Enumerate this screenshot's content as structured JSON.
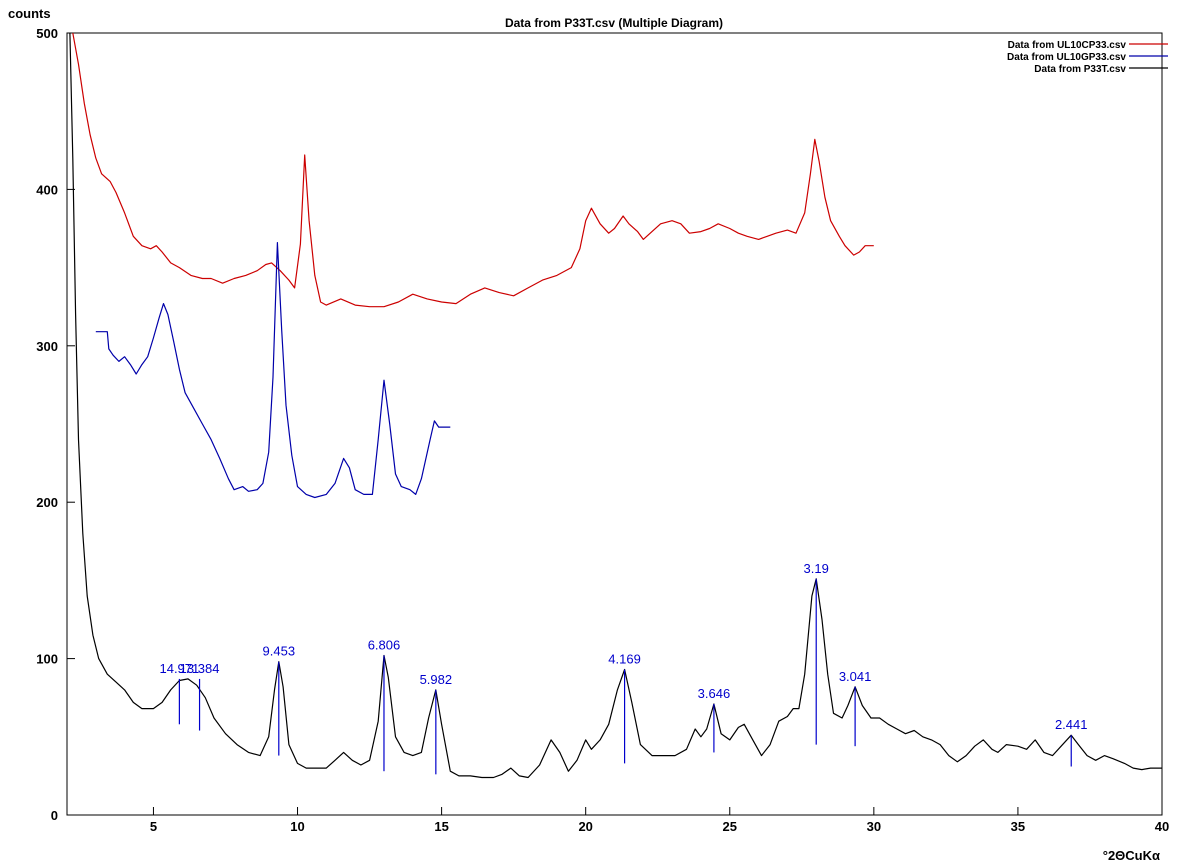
{
  "chart_data": {
    "type": "line",
    "title": "Data from P33T.csv (Multiple Diagram)",
    "ylabel": "counts",
    "xlabel": "°2ΘCuKα",
    "xlim": [
      2,
      40
    ],
    "ylim": [
      0,
      500
    ],
    "x_ticks": [
      5,
      10,
      15,
      20,
      25,
      30,
      35,
      40
    ],
    "y_ticks": [
      0,
      100,
      200,
      300,
      400,
      500
    ],
    "legend_position": "top-right",
    "series": [
      {
        "name": "Data from UL10CP33.csv",
        "color": "#cc0000",
        "points": [
          [
            2.2,
            500
          ],
          [
            2.4,
            480
          ],
          [
            2.6,
            455
          ],
          [
            2.8,
            435
          ],
          [
            3.0,
            420
          ],
          [
            3.2,
            410
          ],
          [
            3.5,
            405
          ],
          [
            3.7,
            398
          ],
          [
            4.0,
            385
          ],
          [
            4.3,
            370
          ],
          [
            4.6,
            364
          ],
          [
            4.9,
            362
          ],
          [
            5.1,
            364
          ],
          [
            5.3,
            360
          ],
          [
            5.6,
            353
          ],
          [
            5.9,
            350
          ],
          [
            6.3,
            345
          ],
          [
            6.7,
            343
          ],
          [
            7.0,
            343
          ],
          [
            7.4,
            340
          ],
          [
            7.8,
            343
          ],
          [
            8.2,
            345
          ],
          [
            8.6,
            348
          ],
          [
            8.9,
            352
          ],
          [
            9.1,
            353
          ],
          [
            9.4,
            348
          ],
          [
            9.7,
            342
          ],
          [
            9.9,
            337
          ],
          [
            10.1,
            365
          ],
          [
            10.25,
            422
          ],
          [
            10.4,
            380
          ],
          [
            10.6,
            345
          ],
          [
            10.8,
            328
          ],
          [
            11.0,
            326
          ],
          [
            11.5,
            330
          ],
          [
            12.0,
            326
          ],
          [
            12.5,
            325
          ],
          [
            13.0,
            325
          ],
          [
            13.5,
            328
          ],
          [
            14.0,
            333
          ],
          [
            14.5,
            330
          ],
          [
            15.0,
            328
          ],
          [
            15.5,
            327
          ],
          [
            16.0,
            333
          ],
          [
            16.5,
            337
          ],
          [
            17.0,
            334
          ],
          [
            17.5,
            332
          ],
          [
            18.0,
            337
          ],
          [
            18.5,
            342
          ],
          [
            19.0,
            345
          ],
          [
            19.5,
            350
          ],
          [
            19.8,
            362
          ],
          [
            20.0,
            380
          ],
          [
            20.2,
            388
          ],
          [
            20.5,
            378
          ],
          [
            20.8,
            372
          ],
          [
            21.0,
            375
          ],
          [
            21.3,
            383
          ],
          [
            21.5,
            378
          ],
          [
            21.8,
            373
          ],
          [
            22.0,
            368
          ],
          [
            22.3,
            373
          ],
          [
            22.6,
            378
          ],
          [
            23.0,
            380
          ],
          [
            23.3,
            378
          ],
          [
            23.6,
            372
          ],
          [
            24.0,
            373
          ],
          [
            24.3,
            375
          ],
          [
            24.6,
            378
          ],
          [
            25.0,
            375
          ],
          [
            25.3,
            372
          ],
          [
            25.6,
            370
          ],
          [
            26.0,
            368
          ],
          [
            26.3,
            370
          ],
          [
            26.6,
            372
          ],
          [
            27.0,
            374
          ],
          [
            27.3,
            372
          ],
          [
            27.6,
            385
          ],
          [
            27.8,
            410
          ],
          [
            27.95,
            432
          ],
          [
            28.1,
            418
          ],
          [
            28.3,
            395
          ],
          [
            28.5,
            380
          ],
          [
            28.8,
            370
          ],
          [
            29.0,
            364
          ],
          [
            29.3,
            358
          ],
          [
            29.5,
            360
          ],
          [
            29.7,
            364
          ],
          [
            30.0,
            364
          ]
        ]
      },
      {
        "name": "Data from UL10GP33.csv",
        "color": "#0000aa",
        "points": [
          [
            3.0,
            309
          ],
          [
            3.4,
            309
          ],
          [
            3.45,
            298
          ],
          [
            3.6,
            294
          ],
          [
            3.8,
            290
          ],
          [
            4.0,
            293
          ],
          [
            4.2,
            288
          ],
          [
            4.4,
            282
          ],
          [
            4.6,
            288
          ],
          [
            4.8,
            293
          ],
          [
            5.0,
            305
          ],
          [
            5.2,
            318
          ],
          [
            5.35,
            327
          ],
          [
            5.5,
            320
          ],
          [
            5.7,
            303
          ],
          [
            5.9,
            285
          ],
          [
            6.1,
            270
          ],
          [
            6.4,
            260
          ],
          [
            6.7,
            250
          ],
          [
            7.0,
            240
          ],
          [
            7.3,
            228
          ],
          [
            7.6,
            215
          ],
          [
            7.8,
            208
          ],
          [
            8.1,
            210
          ],
          [
            8.3,
            207
          ],
          [
            8.6,
            208
          ],
          [
            8.8,
            212
          ],
          [
            9.0,
            232
          ],
          [
            9.15,
            280
          ],
          [
            9.3,
            366
          ],
          [
            9.45,
            310
          ],
          [
            9.6,
            262
          ],
          [
            9.8,
            230
          ],
          [
            10.0,
            210
          ],
          [
            10.3,
            205
          ],
          [
            10.6,
            203
          ],
          [
            11.0,
            205
          ],
          [
            11.3,
            212
          ],
          [
            11.6,
            228
          ],
          [
            11.8,
            222
          ],
          [
            12.0,
            208
          ],
          [
            12.3,
            205
          ],
          [
            12.6,
            205
          ],
          [
            12.8,
            240
          ],
          [
            13.0,
            278
          ],
          [
            13.2,
            250
          ],
          [
            13.4,
            218
          ],
          [
            13.6,
            210
          ],
          [
            13.9,
            208
          ],
          [
            14.1,
            205
          ],
          [
            14.3,
            215
          ],
          [
            14.6,
            240
          ],
          [
            14.75,
            252
          ],
          [
            14.9,
            248
          ],
          [
            15.3,
            248
          ]
        ]
      },
      {
        "name": "Data from P33T.csv",
        "color": "#000000",
        "points": [
          [
            2.1,
            500
          ],
          [
            2.2,
            420
          ],
          [
            2.3,
            320
          ],
          [
            2.4,
            240
          ],
          [
            2.55,
            180
          ],
          [
            2.7,
            140
          ],
          [
            2.9,
            115
          ],
          [
            3.1,
            100
          ],
          [
            3.4,
            90
          ],
          [
            3.7,
            85
          ],
          [
            4.0,
            80
          ],
          [
            4.3,
            72
          ],
          [
            4.6,
            68
          ],
          [
            5.0,
            68
          ],
          [
            5.3,
            72
          ],
          [
            5.6,
            80
          ],
          [
            5.9,
            86
          ],
          [
            6.2,
            87
          ],
          [
            6.5,
            83
          ],
          [
            6.8,
            75
          ],
          [
            7.1,
            62
          ],
          [
            7.5,
            52
          ],
          [
            7.9,
            45
          ],
          [
            8.3,
            40
          ],
          [
            8.7,
            38
          ],
          [
            9.0,
            50
          ],
          [
            9.2,
            80
          ],
          [
            9.35,
            98
          ],
          [
            9.5,
            82
          ],
          [
            9.7,
            45
          ],
          [
            10.0,
            33
          ],
          [
            10.3,
            30
          ],
          [
            10.7,
            30
          ],
          [
            11.0,
            30
          ],
          [
            11.3,
            35
          ],
          [
            11.6,
            40
          ],
          [
            11.9,
            35
          ],
          [
            12.2,
            32
          ],
          [
            12.5,
            35
          ],
          [
            12.8,
            60
          ],
          [
            13.0,
            102
          ],
          [
            13.15,
            88
          ],
          [
            13.4,
            50
          ],
          [
            13.7,
            40
          ],
          [
            14.0,
            38
          ],
          [
            14.3,
            40
          ],
          [
            14.55,
            62
          ],
          [
            14.8,
            80
          ],
          [
            15.0,
            58
          ],
          [
            15.3,
            28
          ],
          [
            15.6,
            25
          ],
          [
            16.0,
            25
          ],
          [
            16.4,
            24
          ],
          [
            16.8,
            24
          ],
          [
            17.1,
            26
          ],
          [
            17.4,
            30
          ],
          [
            17.7,
            25
          ],
          [
            18.0,
            24
          ],
          [
            18.4,
            32
          ],
          [
            18.8,
            48
          ],
          [
            19.1,
            40
          ],
          [
            19.4,
            28
          ],
          [
            19.7,
            35
          ],
          [
            20.0,
            48
          ],
          [
            20.2,
            42
          ],
          [
            20.5,
            48
          ],
          [
            20.8,
            58
          ],
          [
            21.1,
            80
          ],
          [
            21.35,
            93
          ],
          [
            21.6,
            72
          ],
          [
            21.9,
            45
          ],
          [
            22.3,
            38
          ],
          [
            22.7,
            38
          ],
          [
            23.1,
            38
          ],
          [
            23.5,
            42
          ],
          [
            23.8,
            55
          ],
          [
            24.0,
            50
          ],
          [
            24.2,
            55
          ],
          [
            24.45,
            71
          ],
          [
            24.7,
            52
          ],
          [
            25.0,
            48
          ],
          [
            25.3,
            56
          ],
          [
            25.5,
            58
          ],
          [
            25.8,
            48
          ],
          [
            26.1,
            38
          ],
          [
            26.4,
            45
          ],
          [
            26.7,
            60
          ],
          [
            27.0,
            63
          ],
          [
            27.2,
            68
          ],
          [
            27.4,
            68
          ],
          [
            27.6,
            90
          ],
          [
            27.85,
            140
          ],
          [
            28.0,
            151
          ],
          [
            28.2,
            125
          ],
          [
            28.4,
            90
          ],
          [
            28.6,
            65
          ],
          [
            28.9,
            62
          ],
          [
            29.1,
            70
          ],
          [
            29.35,
            82
          ],
          [
            29.6,
            70
          ],
          [
            29.9,
            62
          ],
          [
            30.2,
            62
          ],
          [
            30.5,
            58
          ],
          [
            30.8,
            55
          ],
          [
            31.1,
            52
          ],
          [
            31.4,
            54
          ],
          [
            31.7,
            50
          ],
          [
            32.0,
            48
          ],
          [
            32.3,
            45
          ],
          [
            32.6,
            38
          ],
          [
            32.9,
            34
          ],
          [
            33.2,
            38
          ],
          [
            33.5,
            44
          ],
          [
            33.8,
            48
          ],
          [
            34.1,
            42
          ],
          [
            34.3,
            40
          ],
          [
            34.6,
            45
          ],
          [
            35.0,
            44
          ],
          [
            35.3,
            42
          ],
          [
            35.6,
            48
          ],
          [
            35.9,
            40
          ],
          [
            36.2,
            38
          ],
          [
            36.5,
            44
          ],
          [
            36.85,
            51
          ],
          [
            37.1,
            45
          ],
          [
            37.4,
            38
          ],
          [
            37.7,
            35
          ],
          [
            38.0,
            38
          ],
          [
            38.3,
            36
          ],
          [
            38.7,
            33
          ],
          [
            39.0,
            30
          ],
          [
            39.3,
            29
          ],
          [
            39.6,
            30
          ],
          [
            40.0,
            30
          ]
        ]
      }
    ],
    "peak_markers": [
      {
        "label": "14.971",
        "x": 5.9,
        "top": 87,
        "bottom": 58
      },
      {
        "label": "13.384",
        "x": 6.6,
        "top": 87,
        "bottom": 54
      },
      {
        "label": "9.453",
        "x": 9.35,
        "top": 98,
        "bottom": 38
      },
      {
        "label": "6.806",
        "x": 13.0,
        "top": 102,
        "bottom": 28
      },
      {
        "label": "5.982",
        "x": 14.8,
        "top": 80,
        "bottom": 26
      },
      {
        "label": "4.169",
        "x": 21.35,
        "top": 93,
        "bottom": 33
      },
      {
        "label": "3.646",
        "x": 24.45,
        "top": 71,
        "bottom": 40
      },
      {
        "label": "3.19",
        "x": 28.0,
        "top": 151,
        "bottom": 45
      },
      {
        "label": "3.041",
        "x": 29.35,
        "top": 82,
        "bottom": 44
      },
      {
        "label": "2.441",
        "x": 36.85,
        "top": 51,
        "bottom": 31
      }
    ]
  }
}
